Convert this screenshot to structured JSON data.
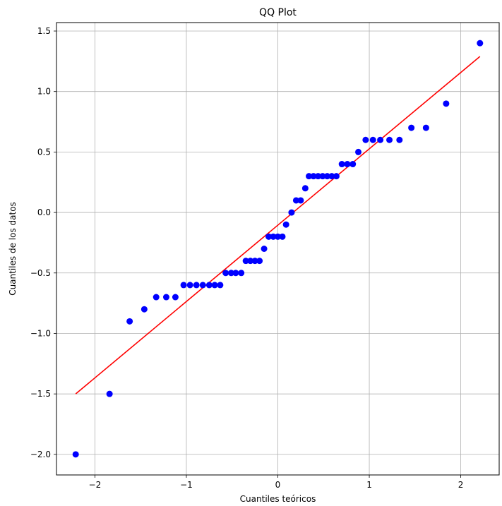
{
  "chart_data": {
    "type": "scatter",
    "title": "QQ Plot",
    "xlabel": "Cuantiles teóricos",
    "ylabel": "Cuantiles de los datos",
    "xlim": [
      -2.42,
      2.42
    ],
    "ylim": [
      -2.17,
      1.57
    ],
    "xticks": [
      -2,
      -1,
      0,
      1,
      2
    ],
    "xtick_labels": [
      "−2",
      "−1",
      "0",
      "1",
      "2"
    ],
    "yticks": [
      -2.0,
      -1.5,
      -1.0,
      -0.5,
      0.0,
      0.5,
      1.0,
      1.5
    ],
    "ytick_labels": [
      "−2.0",
      "−1.5",
      "−1.0",
      "−0.5",
      "0.0",
      "0.5",
      "1.0",
      "1.5"
    ],
    "grid": true,
    "points_color": "#0000ff",
    "line_color": "#ff0000",
    "points": [
      {
        "x": -2.21,
        "y": -2.0
      },
      {
        "x": -1.84,
        "y": -1.5
      },
      {
        "x": -1.62,
        "y": -0.9
      },
      {
        "x": -1.46,
        "y": -0.8
      },
      {
        "x": -1.33,
        "y": -0.7
      },
      {
        "x": -1.22,
        "y": -0.7
      },
      {
        "x": -1.12,
        "y": -0.7
      },
      {
        "x": -1.03,
        "y": -0.6
      },
      {
        "x": -0.96,
        "y": -0.6
      },
      {
        "x": -0.89,
        "y": -0.6
      },
      {
        "x": -0.82,
        "y": -0.6
      },
      {
        "x": -0.75,
        "y": -0.6
      },
      {
        "x": -0.69,
        "y": -0.6
      },
      {
        "x": -0.63,
        "y": -0.6
      },
      {
        "x": -0.57,
        "y": -0.5
      },
      {
        "x": -0.51,
        "y": -0.5
      },
      {
        "x": -0.46,
        "y": -0.5
      },
      {
        "x": -0.4,
        "y": -0.5
      },
      {
        "x": -0.35,
        "y": -0.4
      },
      {
        "x": -0.3,
        "y": -0.4
      },
      {
        "x": -0.25,
        "y": -0.4
      },
      {
        "x": -0.2,
        "y": -0.4
      },
      {
        "x": -0.15,
        "y": -0.3
      },
      {
        "x": -0.1,
        "y": -0.2
      },
      {
        "x": -0.05,
        "y": -0.2
      },
      {
        "x": 0.0,
        "y": -0.2
      },
      {
        "x": 0.05,
        "y": -0.2
      },
      {
        "x": 0.09,
        "y": -0.1
      },
      {
        "x": 0.15,
        "y": 0.0
      },
      {
        "x": 0.2,
        "y": 0.1
      },
      {
        "x": 0.25,
        "y": 0.1
      },
      {
        "x": 0.3,
        "y": 0.2
      },
      {
        "x": 0.34,
        "y": 0.3
      },
      {
        "x": 0.39,
        "y": 0.3
      },
      {
        "x": 0.44,
        "y": 0.3
      },
      {
        "x": 0.49,
        "y": 0.3
      },
      {
        "x": 0.54,
        "y": 0.3
      },
      {
        "x": 0.59,
        "y": 0.3
      },
      {
        "x": 0.64,
        "y": 0.3
      },
      {
        "x": 0.7,
        "y": 0.4
      },
      {
        "x": 0.76,
        "y": 0.4
      },
      {
        "x": 0.82,
        "y": 0.4
      },
      {
        "x": 0.88,
        "y": 0.5
      },
      {
        "x": 0.96,
        "y": 0.6
      },
      {
        "x": 1.04,
        "y": 0.6
      },
      {
        "x": 1.12,
        "y": 0.6
      },
      {
        "x": 1.22,
        "y": 0.6
      },
      {
        "x": 1.33,
        "y": 0.6
      },
      {
        "x": 1.46,
        "y": 0.7
      },
      {
        "x": 1.62,
        "y": 0.7
      },
      {
        "x": 1.84,
        "y": 0.9
      },
      {
        "x": 2.21,
        "y": 1.4
      }
    ],
    "fit_line": [
      {
        "x": -2.21,
        "y": -1.5
      },
      {
        "x": 2.21,
        "y": 1.29
      }
    ]
  }
}
